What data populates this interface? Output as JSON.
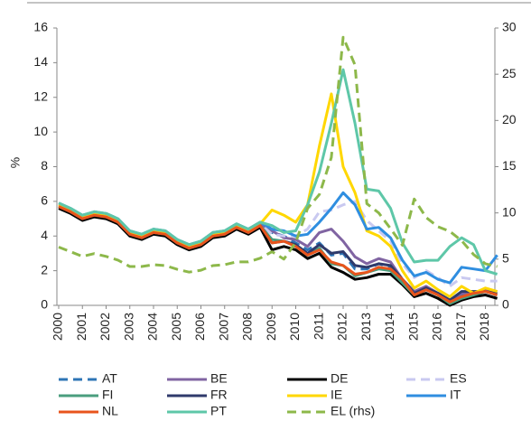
{
  "chart_data": {
    "type": "line",
    "y_label": "%",
    "x": [
      2000,
      2000.5,
      2001,
      2001.5,
      2002,
      2002.5,
      2003,
      2003.5,
      2004,
      2004.5,
      2005,
      2005.5,
      2006,
      2006.5,
      2007,
      2007.5,
      2008,
      2008.5,
      2009,
      2009.5,
      2010,
      2010.5,
      2011,
      2011.5,
      2012,
      2012.5,
      2013,
      2013.5,
      2014,
      2014.5,
      2015,
      2015.5,
      2016,
      2016.5,
      2017,
      2017.5,
      2018,
      2018.5
    ],
    "xlim": [
      2000,
      2018.4
    ],
    "xticks": [
      2000,
      2001,
      2002,
      2003,
      2004,
      2005,
      2006,
      2007,
      2008,
      2009,
      2010,
      2011,
      2012,
      2013,
      2014,
      2015,
      2016,
      2017,
      2018
    ],
    "ylim": [
      0,
      16
    ],
    "yticks": [
      0,
      2,
      4,
      6,
      8,
      10,
      12,
      14,
      16
    ],
    "y2lim": [
      0,
      30
    ],
    "y2ticks": [
      0,
      5,
      10,
      15,
      20,
      25,
      30
    ],
    "series": [
      {
        "name": "AT",
        "color": "#2e75b6",
        "dashed": true,
        "values": [
          5.7,
          5.4,
          5.0,
          5.2,
          5.1,
          4.8,
          4.1,
          3.9,
          4.2,
          4.1,
          3.6,
          3.3,
          3.5,
          4.0,
          4.1,
          4.5,
          4.2,
          4.6,
          4.2,
          4.0,
          3.6,
          3.2,
          3.6,
          2.9,
          3.0,
          2.1,
          2.1,
          2.4,
          2.2,
          1.4,
          0.6,
          1.0,
          0.6,
          0.3,
          0.6,
          0.7,
          0.8,
          0.6
        ]
      },
      {
        "name": "BE",
        "color": "#8064a2",
        "values": [
          5.8,
          5.5,
          5.1,
          5.3,
          5.2,
          4.9,
          4.2,
          4.0,
          4.3,
          4.2,
          3.7,
          3.4,
          3.6,
          4.1,
          4.2,
          4.6,
          4.3,
          4.7,
          4.3,
          3.9,
          3.8,
          3.4,
          4.2,
          4.4,
          3.7,
          2.8,
          2.4,
          2.7,
          2.5,
          1.5,
          0.8,
          1.1,
          0.7,
          0.3,
          0.7,
          0.7,
          0.9,
          0.8
        ]
      },
      {
        "name": "DE",
        "color": "#000000",
        "values": [
          5.6,
          5.3,
          4.9,
          5.1,
          5.0,
          4.7,
          4.0,
          3.8,
          4.1,
          4.0,
          3.5,
          3.2,
          3.4,
          3.9,
          4.0,
          4.4,
          4.1,
          4.5,
          3.2,
          3.4,
          3.2,
          2.7,
          3.0,
          2.2,
          1.9,
          1.5,
          1.6,
          1.8,
          1.8,
          1.2,
          0.5,
          0.7,
          0.4,
          0.0,
          0.3,
          0.5,
          0.6,
          0.4
        ]
      },
      {
        "name": "ES",
        "color": "#c9c9f0",
        "dashed": true,
        "values": [
          5.8,
          5.5,
          5.1,
          5.3,
          5.2,
          4.9,
          4.2,
          4.0,
          4.3,
          4.2,
          3.7,
          3.4,
          3.6,
          4.1,
          4.2,
          4.6,
          4.3,
          4.7,
          4.1,
          4.0,
          4.0,
          4.4,
          5.4,
          5.5,
          5.8,
          6.0,
          4.9,
          4.3,
          3.7,
          2.4,
          1.6,
          2.0,
          1.6,
          1.1,
          1.6,
          1.5,
          1.4,
          1.4
        ]
      },
      {
        "name": "FI",
        "color": "#4a9e7e",
        "values": [
          5.7,
          5.4,
          5.0,
          5.2,
          5.1,
          4.8,
          4.1,
          3.9,
          4.2,
          4.1,
          3.6,
          3.3,
          3.5,
          4.0,
          4.1,
          4.5,
          4.2,
          4.6,
          3.8,
          3.7,
          3.4,
          2.9,
          3.3,
          2.4,
          2.3,
          1.7,
          1.9,
          2.1,
          2.0,
          1.3,
          0.6,
          0.9,
          0.6,
          0.1,
          0.4,
          0.6,
          0.8,
          0.6
        ]
      },
      {
        "name": "FR",
        "color": "#2f3a6b",
        "values": [
          5.7,
          5.4,
          5.0,
          5.2,
          5.1,
          4.8,
          4.1,
          3.9,
          4.2,
          4.1,
          3.6,
          3.3,
          3.5,
          4.0,
          4.1,
          4.5,
          4.2,
          4.6,
          3.6,
          3.7,
          3.5,
          3.0,
          3.5,
          3.0,
          3.1,
          2.3,
          2.2,
          2.4,
          2.3,
          1.5,
          0.7,
          1.0,
          0.7,
          0.3,
          0.8,
          0.8,
          0.8,
          0.7
        ]
      },
      {
        "name": "IE",
        "color": "#ffd700",
        "values": [
          5.8,
          5.5,
          5.1,
          5.3,
          5.2,
          4.9,
          4.2,
          4.0,
          4.3,
          4.2,
          3.7,
          3.4,
          3.6,
          4.1,
          4.2,
          4.6,
          4.3,
          4.7,
          5.5,
          5.2,
          4.8,
          5.8,
          9.2,
          12.2,
          8.0,
          6.5,
          4.3,
          4.0,
          3.4,
          2.0,
          1.0,
          1.4,
          0.9,
          0.5,
          1.1,
          0.7,
          1.0,
          0.8
        ]
      },
      {
        "name": "IT",
        "color": "#2f8ee0",
        "values": [
          5.9,
          5.6,
          5.2,
          5.4,
          5.3,
          5.0,
          4.3,
          4.1,
          4.4,
          4.3,
          3.8,
          3.5,
          3.7,
          4.2,
          4.3,
          4.7,
          4.4,
          4.8,
          4.4,
          4.3,
          4.0,
          4.1,
          4.8,
          5.6,
          6.5,
          5.8,
          4.4,
          4.5,
          3.9,
          2.6,
          1.7,
          1.9,
          1.5,
          1.3,
          2.2,
          2.1,
          2.0,
          2.9
        ]
      },
      {
        "name": "NL",
        "color": "#e8541c",
        "values": [
          5.7,
          5.4,
          5.0,
          5.2,
          5.1,
          4.8,
          4.1,
          3.9,
          4.2,
          4.1,
          3.6,
          3.3,
          3.5,
          4.0,
          4.1,
          4.5,
          4.2,
          4.6,
          3.6,
          3.7,
          3.4,
          2.9,
          3.2,
          2.5,
          2.3,
          1.8,
          1.9,
          2.2,
          2.1,
          1.5,
          0.6,
          0.9,
          0.6,
          0.2,
          0.5,
          0.7,
          0.8,
          0.6
        ]
      },
      {
        "name": "PT",
        "color": "#5ec7a8",
        "values": [
          5.9,
          5.6,
          5.2,
          5.4,
          5.3,
          5.0,
          4.3,
          4.1,
          4.4,
          4.3,
          3.8,
          3.5,
          3.7,
          4.2,
          4.3,
          4.7,
          4.4,
          4.8,
          4.6,
          4.2,
          4.3,
          5.8,
          7.7,
          10.5,
          13.6,
          10.5,
          6.7,
          6.6,
          5.6,
          3.6,
          2.5,
          2.6,
          2.6,
          3.4,
          3.9,
          3.5,
          2.0,
          1.8
        ]
      },
      {
        "name": "EL (rhs)",
        "color": "#8db84a",
        "dashed": true,
        "axis": "y2",
        "values": [
          6.3,
          5.8,
          5.3,
          5.6,
          5.3,
          4.9,
          4.2,
          4.2,
          4.4,
          4.3,
          3.9,
          3.6,
          3.8,
          4.3,
          4.4,
          4.7,
          4.7,
          5.1,
          5.8,
          5.0,
          6.8,
          10.5,
          12.0,
          16.0,
          29.0,
          26.0,
          11.0,
          10.0,
          8.3,
          6.5,
          11.5,
          9.5,
          8.5,
          8.0,
          7.0,
          5.5,
          4.5,
          4.2
        ]
      }
    ]
  }
}
